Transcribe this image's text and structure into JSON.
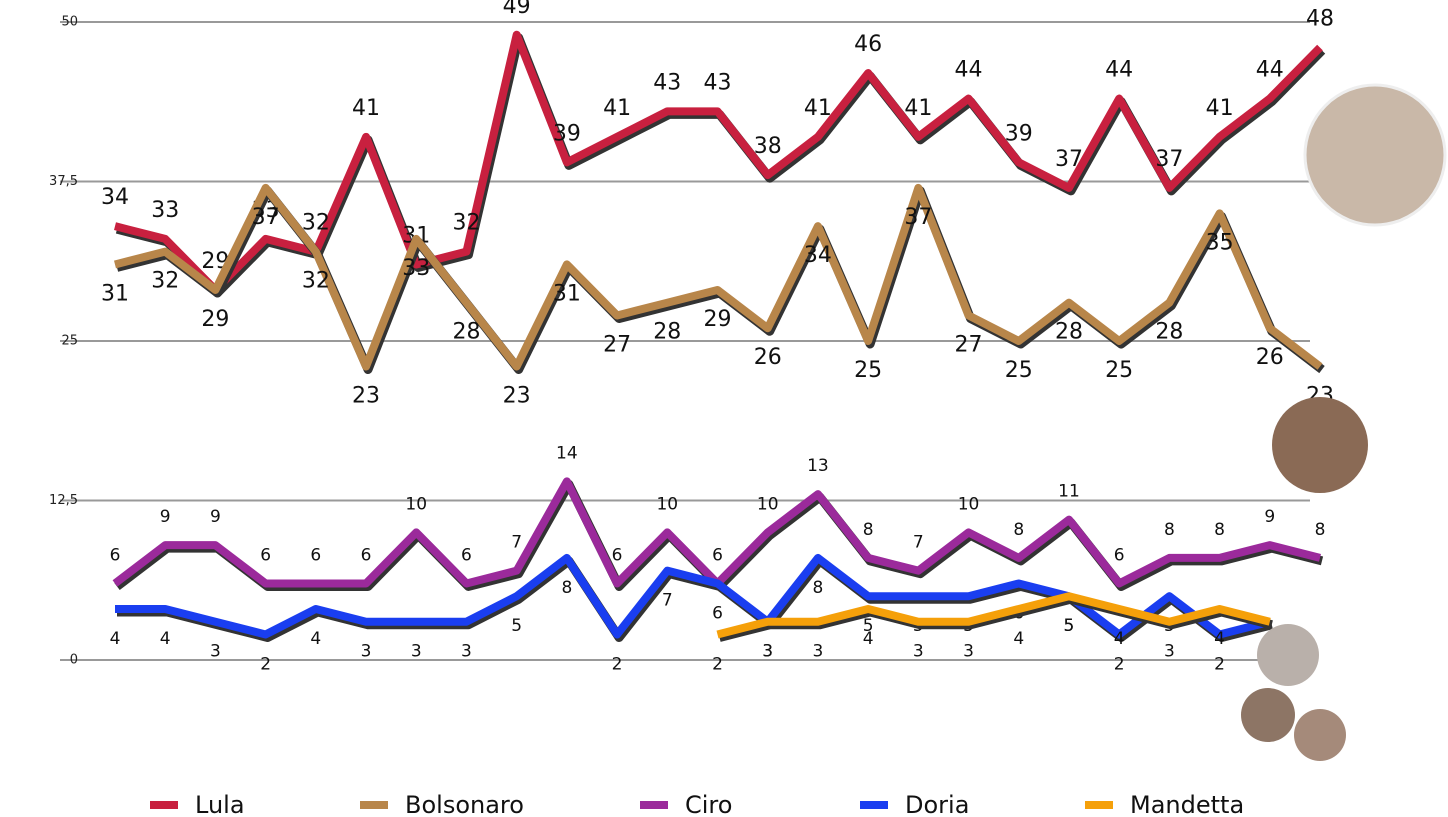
{
  "chart_data": {
    "type": "line",
    "ylim": [
      0,
      50
    ],
    "yticks": [
      0,
      {
        "value": 12.5,
        "label": "12,5"
      },
      25,
      {
        "value": 37.5,
        "label": "37,5"
      },
      50
    ],
    "grid": true,
    "series": [
      {
        "name": "Lula",
        "color": "#c8203f",
        "values": [
          34,
          33,
          29,
          33,
          32,
          41,
          31,
          32,
          49,
          39,
          41,
          43,
          43,
          38,
          41,
          46,
          41,
          44,
          39,
          37,
          44,
          37,
          41,
          44,
          48
        ]
      },
      {
        "name": "Bolsonaro",
        "color": "#b8864a",
        "values": [
          31,
          32,
          29,
          37,
          32,
          23,
          33,
          28,
          23,
          31,
          27,
          28,
          29,
          26,
          34,
          25,
          37,
          27,
          25,
          28,
          25,
          28,
          35,
          26,
          23
        ]
      },
      {
        "name": "Ciro",
        "color": "#9b2a9b",
        "values": [
          6,
          9,
          9,
          6,
          6,
          6,
          10,
          6,
          7,
          14,
          6,
          10,
          6,
          10,
          13,
          8,
          7,
          10,
          8,
          11,
          6,
          8,
          8,
          9,
          8
        ]
      },
      {
        "name": "Doria",
        "color": "#1a3ef0",
        "values": [
          4,
          4,
          3,
          2,
          4,
          3,
          3,
          3,
          5,
          8,
          2,
          7,
          6,
          3,
          8,
          5,
          5,
          5,
          6,
          5,
          2,
          5,
          2,
          3,
          null
        ]
      },
      {
        "name": "Mandetta",
        "color": "#f5a00a",
        "values": [
          null,
          null,
          null,
          null,
          null,
          null,
          null,
          null,
          null,
          null,
          null,
          null,
          2,
          3,
          3,
          4,
          3,
          3,
          4,
          5,
          4,
          3,
          4,
          3,
          null
        ]
      }
    ],
    "legend": "bottom"
  }
}
